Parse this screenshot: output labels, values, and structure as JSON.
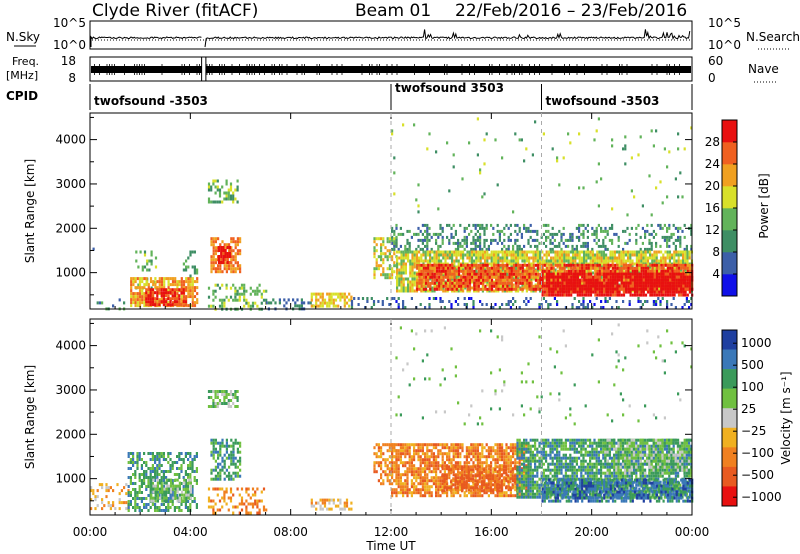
{
  "header": {
    "station": "Clyde River (fitACF)",
    "beam": "Beam 01",
    "date_range": "22/Feb/2016 – 23/Feb/2016"
  },
  "strip_labels": {
    "nsky": "N.Sky",
    "freq_line1": "Freq.",
    "freq_line2": "[MHz]",
    "cpid": "CPID",
    "nsearch": "N.Search",
    "nave": "Nave",
    "nsky_ticks": [
      "10^5",
      "10^0"
    ],
    "nsearch_ticks": [
      "10^5",
      "10^0"
    ],
    "freq_ticks": [
      "18",
      "8"
    ],
    "nave_ticks": [
      "60",
      "0"
    ]
  },
  "cpid_programs": [
    {
      "name": "twofsound -3503",
      "start_hour": 0
    },
    {
      "name": "twofsound 3503",
      "start_hour": 12
    },
    {
      "name": "twofsound -3503",
      "start_hour": 18
    }
  ],
  "colors": {
    "power_scale": [
      "#1010e8",
      "#3c5fa8",
      "#3e8e64",
      "#62b35a",
      "#d8e02a",
      "#f0a020",
      "#f06020",
      "#e81010"
    ],
    "velocity_scale": [
      "#1f3fa0",
      "#3a78b8",
      "#3a9a5a",
      "#70c040",
      "#c8c8c8",
      "#f0b020",
      "#f08020",
      "#e85a20",
      "#e81010"
    ]
  },
  "chart_data": [
    {
      "type": "heatmap",
      "panel": "power",
      "xlabel": "Time UT",
      "ylabel": "Slant Range [km]",
      "x_ticks": [
        "00:00",
        "04:00",
        "08:00",
        "12:00",
        "16:00",
        "20:00",
        "00:00"
      ],
      "xlim_hours": [
        0,
        24
      ],
      "ylim": [
        180,
        4600
      ],
      "y_ticks": [
        1000,
        2000,
        3000,
        4000
      ],
      "colorbar_label": "Power [dB]",
      "colorbar_ticks": [
        4,
        8,
        12,
        16,
        20,
        24,
        28
      ],
      "colorbar_range": [
        0,
        32
      ],
      "data_gaps_hours": [
        [
          4.45,
          4.62
        ]
      ],
      "scatter_regions": [
        {
          "t0": 0.0,
          "t1": 1.4,
          "r0": 180,
          "r1": 420,
          "value": 10,
          "density": 0.15
        },
        {
          "t0": 0.1,
          "t1": 0.6,
          "r0": 1300,
          "r1": 1700,
          "value": 8,
          "density": 0.1
        },
        {
          "t0": 1.8,
          "t1": 2.6,
          "r0": 600,
          "r1": 1500,
          "value": 14,
          "density": 0.2
        },
        {
          "t0": 1.6,
          "t1": 4.3,
          "r0": 250,
          "r1": 900,
          "value": 22,
          "density": 0.75
        },
        {
          "t0": 2.2,
          "t1": 3.8,
          "r0": 280,
          "r1": 650,
          "value": 30,
          "density": 0.85
        },
        {
          "t0": 3.7,
          "t1": 4.3,
          "r0": 900,
          "r1": 1500,
          "value": 12,
          "density": 0.3
        },
        {
          "t0": 4.7,
          "t1": 5.9,
          "r0": 2600,
          "r1": 3100,
          "value": 14,
          "density": 0.5
        },
        {
          "t0": 4.8,
          "t1": 6.0,
          "r0": 1000,
          "r1": 1800,
          "value": 24,
          "density": 0.7
        },
        {
          "t0": 5.1,
          "t1": 5.6,
          "r0": 1200,
          "r1": 1600,
          "value": 30,
          "density": 0.8
        },
        {
          "t0": 4.7,
          "t1": 7.0,
          "r0": 200,
          "r1": 750,
          "value": 14,
          "density": 0.35
        },
        {
          "t0": 7.0,
          "t1": 9.0,
          "r0": 200,
          "r1": 420,
          "value": 8,
          "density": 0.25
        },
        {
          "t0": 8.8,
          "t1": 10.4,
          "r0": 260,
          "r1": 550,
          "value": 20,
          "density": 0.7
        },
        {
          "t0": 10.4,
          "t1": 11.9,
          "r0": 200,
          "r1": 450,
          "value": 8,
          "density": 0.35
        },
        {
          "t0": 11.3,
          "t1": 12.2,
          "r0": 900,
          "r1": 1800,
          "value": 18,
          "density": 0.5
        },
        {
          "t0": 12.0,
          "t1": 24.0,
          "r0": 1500,
          "r1": 2100,
          "value": 10,
          "density": 0.35
        },
        {
          "t0": 12.2,
          "t1": 24.0,
          "r0": 600,
          "r1": 1500,
          "value": 18,
          "density": 0.85
        },
        {
          "t0": 13.0,
          "t1": 24.0,
          "r0": 600,
          "r1": 1200,
          "value": 27,
          "density": 0.85
        },
        {
          "t0": 18.0,
          "t1": 24.0,
          "r0": 500,
          "r1": 1000,
          "value": 31,
          "density": 0.9
        },
        {
          "t0": 12.0,
          "t1": 24.0,
          "r0": 180,
          "r1": 450,
          "value": 6,
          "density": 0.25
        },
        {
          "t0": 12.0,
          "t1": 24.0,
          "r0": 2200,
          "r1": 4500,
          "value": 14,
          "density": 0.02
        }
      ]
    },
    {
      "type": "heatmap",
      "panel": "velocity",
      "xlabel": "Time UT",
      "ylabel": "Slant Range [km]",
      "x_ticks": [
        "00:00",
        "04:00",
        "08:00",
        "12:00",
        "16:00",
        "20:00",
        "00:00"
      ],
      "xlim_hours": [
        0,
        24
      ],
      "ylim": [
        180,
        4600
      ],
      "y_ticks": [
        1000,
        2000,
        3000,
        4000
      ],
      "colorbar_label": "Velocity [m s⁻¹]",
      "colorbar_ticks": [
        "1000",
        "500",
        "100",
        "25",
        "−25",
        "−100",
        "−500",
        "−1000"
      ],
      "data_gaps_hours": [
        [
          4.45,
          4.62
        ]
      ],
      "scatter_regions": [
        {
          "t0": 0.0,
          "t1": 1.5,
          "r0": 300,
          "r1": 900,
          "value": "−100",
          "density": 0.3
        },
        {
          "t0": 1.5,
          "t1": 4.3,
          "r0": 300,
          "r1": 1600,
          "value": "100",
          "density": 0.55
        },
        {
          "t0": 2.4,
          "t1": 4.0,
          "r0": 500,
          "r1": 1000,
          "value": "25",
          "density": 0.6
        },
        {
          "t0": 4.7,
          "t1": 5.9,
          "r0": 2600,
          "r1": 3000,
          "value": "25",
          "density": 0.6
        },
        {
          "t0": 4.8,
          "t1": 6.0,
          "r0": 1000,
          "r1": 1900,
          "value": "100",
          "density": 0.6
        },
        {
          "t0": 4.7,
          "t1": 7.0,
          "r0": 250,
          "r1": 800,
          "value": "−500",
          "density": 0.35
        },
        {
          "t0": 8.8,
          "t1": 10.4,
          "r0": 280,
          "r1": 550,
          "value": "−100",
          "density": 0.6
        },
        {
          "t0": 11.3,
          "t1": 12.2,
          "r0": 900,
          "r1": 1800,
          "value": "−500",
          "density": 0.5
        },
        {
          "t0": 12.0,
          "t1": 17.5,
          "r0": 600,
          "r1": 1800,
          "value": "−500",
          "density": 0.75
        },
        {
          "t0": 14.0,
          "t1": 17.0,
          "r0": 700,
          "r1": 1300,
          "value": "−1000",
          "density": 0.6
        },
        {
          "t0": 17.0,
          "t1": 24.0,
          "r0": 600,
          "r1": 1900,
          "value": "100",
          "density": 0.8
        },
        {
          "t0": 18.0,
          "t1": 24.0,
          "r0": 500,
          "r1": 1000,
          "value": "500",
          "density": 0.7
        },
        {
          "t0": 20.5,
          "t1": 24.0,
          "r0": 1100,
          "r1": 1900,
          "value": "25",
          "density": 0.6
        },
        {
          "t0": 12.0,
          "t1": 24.0,
          "r0": 2200,
          "r1": 4500,
          "value": "25",
          "density": 0.02
        }
      ]
    }
  ]
}
